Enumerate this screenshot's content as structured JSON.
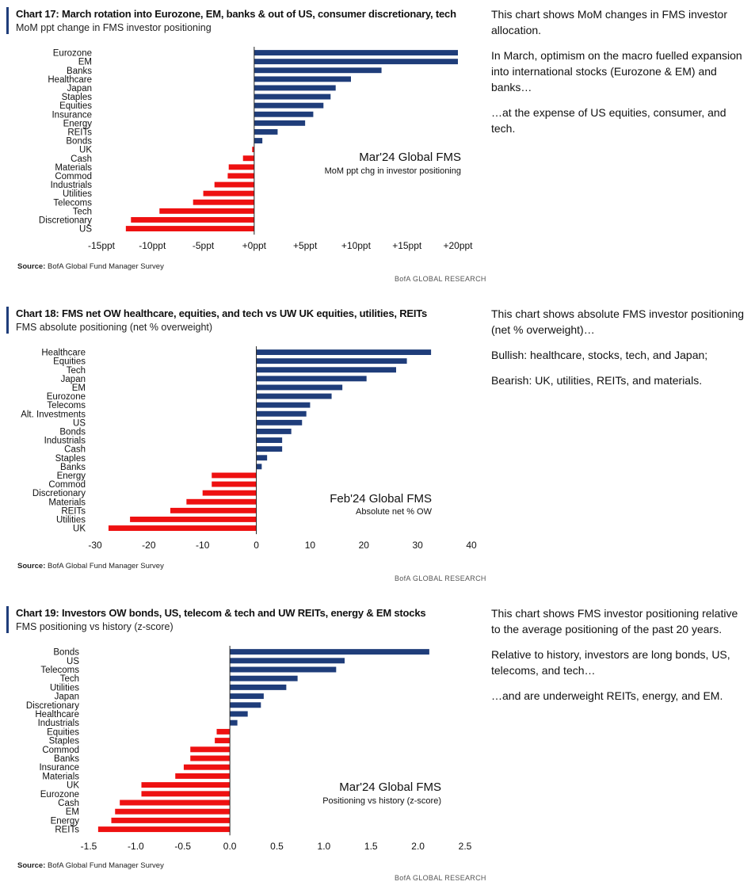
{
  "colors": {
    "positive": "#1f3d7a",
    "negative": "#ee1111",
    "accent": "#1f3d7a"
  },
  "source_label": "Source:",
  "footer": "BofA GLOBAL RESEARCH",
  "charts": [
    {
      "title": "Chart 17: March rotation into Eurozone, EM, banks & out of US, consumer discretionary, tech",
      "subtitle": "MoM ppt change in FMS investor positioning",
      "source": "BofA Global Fund Manager Survey",
      "commentary": [
        "This chart shows MoM changes in FMS investor allocation.",
        "In March, optimism on the macro fuelled expansion into international stocks (Eurozone & EM) and banks…",
        "…at the expense of US equities, consumer, and tech."
      ],
      "chart_data": {
        "type": "bar",
        "orientation": "horizontal",
        "categories": [
          "Eurozone",
          "EM",
          "Banks",
          "Healthcare",
          "Japan",
          "Staples",
          "Equities",
          "Insurance",
          "Energy",
          "REITs",
          "Bonds",
          "UK",
          "Cash",
          "Materials",
          "Commod",
          "Industrials",
          "Utilities",
          "Telecoms",
          "Tech",
          "Discretionary",
          "US"
        ],
        "values": [
          20,
          20,
          12.5,
          9.5,
          8,
          7.5,
          6.8,
          5.8,
          5,
          2.3,
          0.8,
          -0.2,
          -1.1,
          -2.5,
          -2.6,
          -3.9,
          -5,
          -6,
          -9.3,
          -12.1,
          -12.6
        ],
        "xlim": [
          -15,
          20
        ],
        "xticks": [
          -15,
          -10,
          -5,
          0,
          5,
          10,
          15,
          20
        ],
        "xtick_labels": [
          "-15ppt",
          "-10ppt",
          "-5ppt",
          "+0ppt",
          "+5ppt",
          "+10ppt",
          "+15ppt",
          "+20ppt"
        ],
        "annotation_title": "Mar'24 Global FMS",
        "annotation_subtitle": "MoM ppt chg in investor positioning"
      }
    },
    {
      "title": "Chart 18: FMS net OW healthcare, equities, and tech vs UW UK equities, utilities, REITs",
      "subtitle": "FMS absolute positioning (net % overweight)",
      "source": "BofA Global Fund Manager Survey",
      "commentary": [
        "This chart shows absolute FMS investor positioning (net % overweight)…",
        "Bullish: healthcare, stocks, tech, and Japan;",
        "Bearish: UK, utilities, REITs, and materials."
      ],
      "chart_data": {
        "type": "bar",
        "orientation": "horizontal",
        "categories": [
          "Healthcare",
          "Equities",
          "Tech",
          "Japan",
          "EM",
          "Eurozone",
          "Telecoms",
          "Alt. Investments",
          "US",
          "Bonds",
          "Industrials",
          "Cash",
          "Staples",
          "Banks",
          "Energy",
          "Commod",
          "Discretionary",
          "Materials",
          "REITs",
          "Utilities",
          "UK"
        ],
        "values": [
          32.5,
          28,
          26,
          20.5,
          16,
          14,
          10,
          9.3,
          8.5,
          6.5,
          4.8,
          4.8,
          2,
          1,
          -8.3,
          -8.3,
          -10,
          -13,
          -16,
          -23.5,
          -27.5
        ],
        "xlim": [
          -30,
          40
        ],
        "xticks": [
          -30,
          -20,
          -10,
          0,
          10,
          20,
          30,
          40
        ],
        "xtick_labels": [
          "-30",
          "-20",
          "-10",
          "0",
          "10",
          "20",
          "30",
          "40"
        ],
        "annotation_title": "Feb'24 Global FMS",
        "annotation_subtitle": "Absolute net % OW"
      }
    },
    {
      "title": "Chart 19: Investors OW bonds, US, telecom & tech and UW REITs, energy & EM stocks",
      "subtitle": "FMS positioning vs history (z-score)",
      "source": "BofA Global Fund Manager Survey",
      "commentary": [
        "This chart shows FMS investor positioning relative to the average positioning of the past 20 years.",
        "Relative to history, investors are long bonds, US, telecoms, and tech…",
        "…and are underweight REITs, energy, and EM."
      ],
      "chart_data": {
        "type": "bar",
        "orientation": "horizontal",
        "categories": [
          "Bonds",
          "US",
          "Telecoms",
          "Tech",
          "Utilities",
          "Japan",
          "Discretionary",
          "Healthcare",
          "Industrials",
          "Equities",
          "Staples",
          "Commod",
          "Banks",
          "Insurance",
          "Materials",
          "UK",
          "Eurozone",
          "Cash",
          "EM",
          "Energy",
          "REITs"
        ],
        "values": [
          2.12,
          1.22,
          1.13,
          0.72,
          0.6,
          0.36,
          0.33,
          0.19,
          0.08,
          -0.14,
          -0.16,
          -0.42,
          -0.42,
          -0.49,
          -0.58,
          -0.94,
          -0.94,
          -1.17,
          -1.22,
          -1.26,
          -1.4
        ],
        "xlim": [
          -1.5,
          2.5
        ],
        "xticks": [
          -1.5,
          -1.0,
          -0.5,
          0.0,
          0.5,
          1.0,
          1.5,
          2.0,
          2.5
        ],
        "xtick_labels": [
          "-1.5",
          "-1.0",
          "-0.5",
          "0.0",
          "0.5",
          "1.0",
          "1.5",
          "2.0",
          "2.5"
        ],
        "annotation_title": "Mar'24 Global FMS",
        "annotation_subtitle": "Positioning vs history (z-score)"
      }
    }
  ]
}
